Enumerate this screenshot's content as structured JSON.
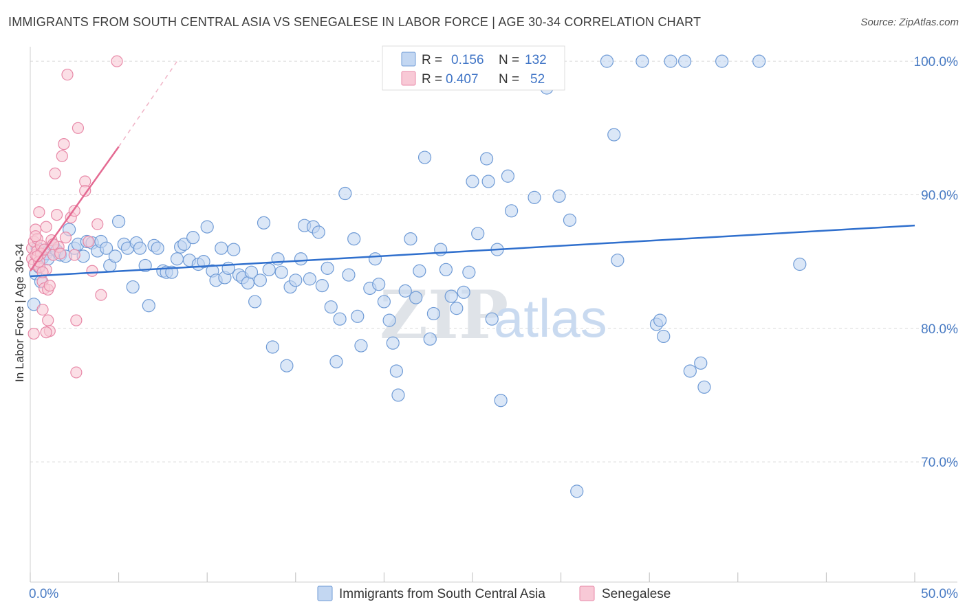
{
  "header": {
    "title": "IMMIGRANTS FROM SOUTH CENTRAL ASIA VS SENEGALESE IN LABOR FORCE | AGE 30-34 CORRELATION CHART",
    "source": "Source: ZipAtlas.com"
  },
  "watermark": {
    "part1": "ZIP",
    "part2": "atlas"
  },
  "legend": {
    "r_label": "R =",
    "n_label": "N =",
    "rows": [
      {
        "series": "Immigrants from South Central Asia",
        "r": "0.156",
        "n": "132",
        "color": "#a9c6ee"
      },
      {
        "series": "Senegalese",
        "r": "0.407",
        "n": "52",
        "color": "#f5b8ca"
      }
    ]
  },
  "colors": {
    "blue_fill": "#c3d7f2",
    "blue_stroke": "#6f9bd6",
    "blue_line": "#2f6fcd",
    "pink_fill": "#f8c9d6",
    "pink_stroke": "#e889a8",
    "pink_line": "#e46a92",
    "grid": "#d9d9d9"
  },
  "chart_data": {
    "type": "scatter",
    "title": "IMMIGRANTS FROM SOUTH CENTRAL ASIA VS SENEGALESE IN LABOR FORCE | AGE 30-34 CORRELATION CHART",
    "ylabel": "In Labor Force | Age 30-34",
    "xlabel": "",
    "x_ticks": [
      "0.0%",
      "50.0%"
    ],
    "y_ticks": [
      "100.0%",
      "90.0%",
      "80.0%",
      "70.0%"
    ],
    "xlim": [
      0,
      50
    ],
    "ylim": [
      61,
      101.5
    ],
    "grid": true,
    "legend_placement": "top-center",
    "series": [
      {
        "name": "Immigrants from South Central Asia",
        "r": 0.156,
        "n": 132,
        "trend": {
          "x": [
            0,
            50
          ],
          "y": [
            83.9,
            87.7
          ]
        },
        "points": [
          [
            0.3,
            84.1
          ],
          [
            0.5,
            84.6
          ],
          [
            0.7,
            85.3
          ],
          [
            0.9,
            85.6
          ],
          [
            1.1,
            85.9
          ],
          [
            1.3,
            86.2
          ],
          [
            1.5,
            85.8
          ],
          [
            1.7,
            85.5
          ],
          [
            2.0,
            85.4
          ],
          [
            2.2,
            87.4
          ],
          [
            2.5,
            86.0
          ],
          [
            2.7,
            86.3
          ],
          [
            3.0,
            85.4
          ],
          [
            3.2,
            86.5
          ],
          [
            3.5,
            86.4
          ],
          [
            3.8,
            85.8
          ],
          [
            4.0,
            86.5
          ],
          [
            4.3,
            86.0
          ],
          [
            4.5,
            84.7
          ],
          [
            4.8,
            85.4
          ],
          [
            5.0,
            88.0
          ],
          [
            5.3,
            86.3
          ],
          [
            5.5,
            86.0
          ],
          [
            5.8,
            83.1
          ],
          [
            6.0,
            86.4
          ],
          [
            6.2,
            86.0
          ],
          [
            6.5,
            84.7
          ],
          [
            6.7,
            81.7
          ],
          [
            7.0,
            86.2
          ],
          [
            7.2,
            86.0
          ],
          [
            7.5,
            84.3
          ],
          [
            7.7,
            84.2
          ],
          [
            8.0,
            84.2
          ],
          [
            8.3,
            85.2
          ],
          [
            8.5,
            86.1
          ],
          [
            8.7,
            86.3
          ],
          [
            9.0,
            85.1
          ],
          [
            9.2,
            86.8
          ],
          [
            9.5,
            84.8
          ],
          [
            9.8,
            85.0
          ],
          [
            10.0,
            87.6
          ],
          [
            10.3,
            84.3
          ],
          [
            10.5,
            83.6
          ],
          [
            10.8,
            86.0
          ],
          [
            11.0,
            83.8
          ],
          [
            11.2,
            84.5
          ],
          [
            11.5,
            85.9
          ],
          [
            11.8,
            84.0
          ],
          [
            12.0,
            83.8
          ],
          [
            12.3,
            83.4
          ],
          [
            12.5,
            84.2
          ],
          [
            12.7,
            82.0
          ],
          [
            13.0,
            83.6
          ],
          [
            13.2,
            87.9
          ],
          [
            13.5,
            84.4
          ],
          [
            13.7,
            78.6
          ],
          [
            14.0,
            85.2
          ],
          [
            14.2,
            84.2
          ],
          [
            14.5,
            77.2
          ],
          [
            14.7,
            83.1
          ],
          [
            15.0,
            83.6
          ],
          [
            15.3,
            85.2
          ],
          [
            15.5,
            87.7
          ],
          [
            15.8,
            83.7
          ],
          [
            16.0,
            87.6
          ],
          [
            16.3,
            87.2
          ],
          [
            16.5,
            83.2
          ],
          [
            16.8,
            84.5
          ],
          [
            17.0,
            81.6
          ],
          [
            17.3,
            77.5
          ],
          [
            17.5,
            80.7
          ],
          [
            17.8,
            90.1
          ],
          [
            18.0,
            84.0
          ],
          [
            18.3,
            86.7
          ],
          [
            18.5,
            80.9
          ],
          [
            18.7,
            78.7
          ],
          [
            19.2,
            83.0
          ],
          [
            19.5,
            85.2
          ],
          [
            19.7,
            83.3
          ],
          [
            20.0,
            82.0
          ],
          [
            20.3,
            80.6
          ],
          [
            20.5,
            78.9
          ],
          [
            20.7,
            76.8
          ],
          [
            20.8,
            75.0
          ],
          [
            21.2,
            82.8
          ],
          [
            21.5,
            86.7
          ],
          [
            21.8,
            82.3
          ],
          [
            22.0,
            84.3
          ],
          [
            22.3,
            92.8
          ],
          [
            22.6,
            79.2
          ],
          [
            22.8,
            81.1
          ],
          [
            23.2,
            85.9
          ],
          [
            23.5,
            84.4
          ],
          [
            23.8,
            82.4
          ],
          [
            24.1,
            81.5
          ],
          [
            24.5,
            82.7
          ],
          [
            24.8,
            84.2
          ],
          [
            25.0,
            91.0
          ],
          [
            25.3,
            87.1
          ],
          [
            25.8,
            92.7
          ],
          [
            25.9,
            91.0
          ],
          [
            26.1,
            80.7
          ],
          [
            26.4,
            85.9
          ],
          [
            26.6,
            74.6
          ],
          [
            27.0,
            91.4
          ],
          [
            27.2,
            88.8
          ],
          [
            28.5,
            89.8
          ],
          [
            29.2,
            98.0
          ],
          [
            29.9,
            89.9
          ],
          [
            30.5,
            88.1
          ],
          [
            30.9,
            67.8
          ],
          [
            32.6,
            100.0
          ],
          [
            33.0,
            94.5
          ],
          [
            33.2,
            85.1
          ],
          [
            34.6,
            100.0
          ],
          [
            35.4,
            80.3
          ],
          [
            35.6,
            80.6
          ],
          [
            35.8,
            79.4
          ],
          [
            36.2,
            100.0
          ],
          [
            37.0,
            100.0
          ],
          [
            37.3,
            76.8
          ],
          [
            37.9,
            77.4
          ],
          [
            38.1,
            75.6
          ],
          [
            39.1,
            100.0
          ],
          [
            41.2,
            100.0
          ],
          [
            43.5,
            84.8
          ],
          [
            0.2,
            81.8
          ],
          [
            0.6,
            83.5
          ],
          [
            1.0,
            85.2
          ],
          [
            0.4,
            86.0
          ]
        ]
      },
      {
        "name": "Senegalese",
        "r": 0.407,
        "n": 52,
        "trend": {
          "x": [
            0,
            5.0
          ],
          "y": [
            84.3,
            93.6
          ]
        },
        "trend_dashed": {
          "x": [
            5.0,
            8.3
          ],
          "y": [
            93.6,
            100.0
          ]
        },
        "points": [
          [
            0.1,
            85.2
          ],
          [
            0.1,
            86.0
          ],
          [
            0.2,
            84.8
          ],
          [
            0.2,
            86.5
          ],
          [
            0.3,
            85.5
          ],
          [
            0.3,
            87.4
          ],
          [
            0.4,
            86.7
          ],
          [
            0.4,
            85.8
          ],
          [
            0.5,
            84.6
          ],
          [
            0.5,
            88.7
          ],
          [
            0.6,
            86.2
          ],
          [
            0.6,
            85.6
          ],
          [
            0.7,
            83.5
          ],
          [
            0.7,
            81.4
          ],
          [
            0.8,
            85.9
          ],
          [
            0.8,
            83.0
          ],
          [
            0.9,
            84.4
          ],
          [
            0.9,
            87.6
          ],
          [
            1.0,
            82.9
          ],
          [
            1.0,
            80.6
          ],
          [
            1.1,
            79.8
          ],
          [
            1.2,
            86.6
          ],
          [
            1.3,
            85.5
          ],
          [
            1.4,
            91.6
          ],
          [
            1.5,
            88.5
          ],
          [
            1.6,
            86.1
          ],
          [
            1.7,
            85.6
          ],
          [
            1.8,
            92.9
          ],
          [
            1.9,
            93.8
          ],
          [
            2.0,
            86.8
          ],
          [
            2.1,
            99.0
          ],
          [
            2.3,
            88.3
          ],
          [
            2.5,
            85.5
          ],
          [
            2.6,
            80.6
          ],
          [
            2.7,
            95.0
          ],
          [
            2.6,
            76.7
          ],
          [
            2.5,
            88.8
          ],
          [
            3.1,
            91.0
          ],
          [
            3.1,
            90.3
          ],
          [
            3.3,
            86.5
          ],
          [
            3.5,
            84.3
          ],
          [
            3.8,
            87.8
          ],
          [
            4.0,
            82.5
          ],
          [
            4.9,
            100.0
          ],
          [
            0.2,
            79.6
          ],
          [
            0.3,
            86.9
          ],
          [
            0.5,
            85.0
          ],
          [
            0.7,
            84.2
          ],
          [
            1.1,
            83.2
          ],
          [
            1.3,
            86.3
          ],
          [
            0.9,
            79.7
          ],
          [
            0.4,
            85.4
          ]
        ]
      }
    ]
  }
}
